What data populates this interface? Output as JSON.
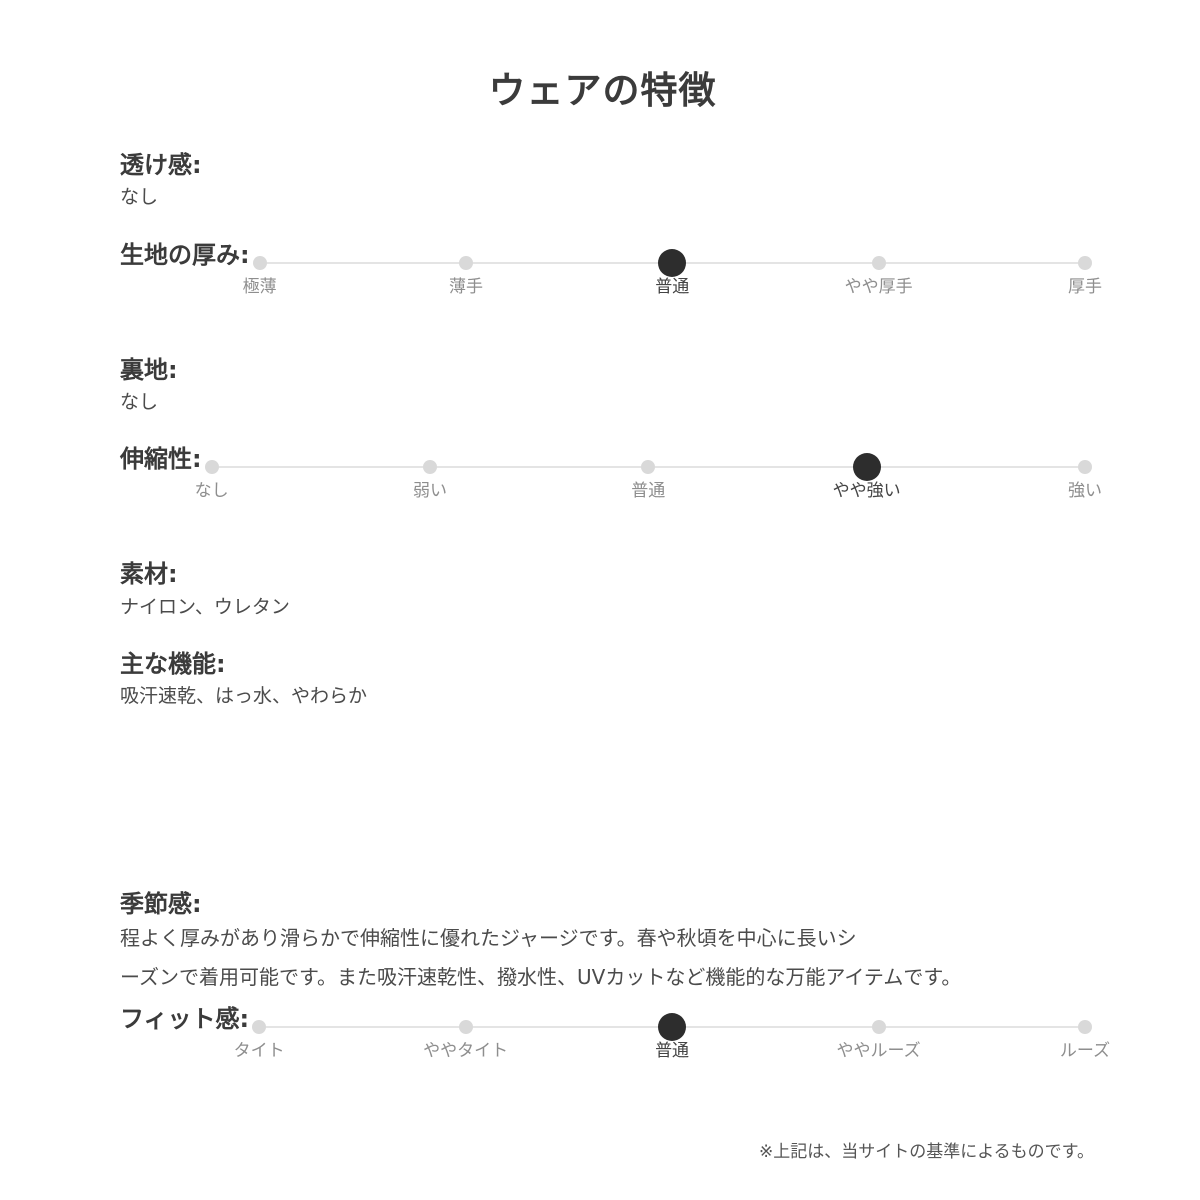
{
  "page": {
    "title": "ウェアの特徴",
    "footnote": "※上記は、当サイトの基準によるものです。"
  },
  "sections": {
    "sheerness": {
      "label": "透け感:",
      "value": "なし"
    },
    "fabric_thickness": {
      "label": "生地の厚み:",
      "scale": {
        "options": [
          "極薄",
          "薄手",
          "普通",
          "やや厚手",
          "厚手"
        ],
        "selected_index": 2,
        "selected_label": "普通"
      }
    },
    "lining": {
      "label": "裏地:",
      "value": "なし"
    },
    "stretch": {
      "label": "伸縮性:",
      "scale": {
        "options": [
          "なし",
          "弱い",
          "普通",
          "やや強い",
          "強い"
        ],
        "selected_index": 3,
        "selected_label": "やや強い"
      }
    },
    "material": {
      "label": "素材:",
      "value": "ナイロン、ウレタン"
    },
    "main_functions": {
      "label": "主な機能:",
      "value": "吸汗速乾、はっ水、やわらか"
    },
    "season": {
      "label": "季節感:",
      "lines": [
        "程よく厚みがあり滑らかで伸縮性に優れたジャージです。春や秋頃を中心に長いシ",
        "ーズンで着用可能です。また吸汗速乾性、撥水性、UVカットなど機能的な万能アイテムです。"
      ]
    },
    "fit": {
      "label": "フィット感:",
      "scale": {
        "options": [
          "タイト",
          "ややタイト",
          "普通",
          "ややルーズ",
          "ルーズ"
        ],
        "selected_index": 2,
        "selected_label": "普通"
      }
    }
  },
  "colors": {
    "heading": "#3b3b3b",
    "body": "#4b4b4b",
    "track": "#e4e4e4",
    "dot_inactive": "#d9d9d9",
    "dot_active": "#2d2d2d",
    "tick_inactive": "#8e8e8e",
    "tick_active": "#444444"
  }
}
